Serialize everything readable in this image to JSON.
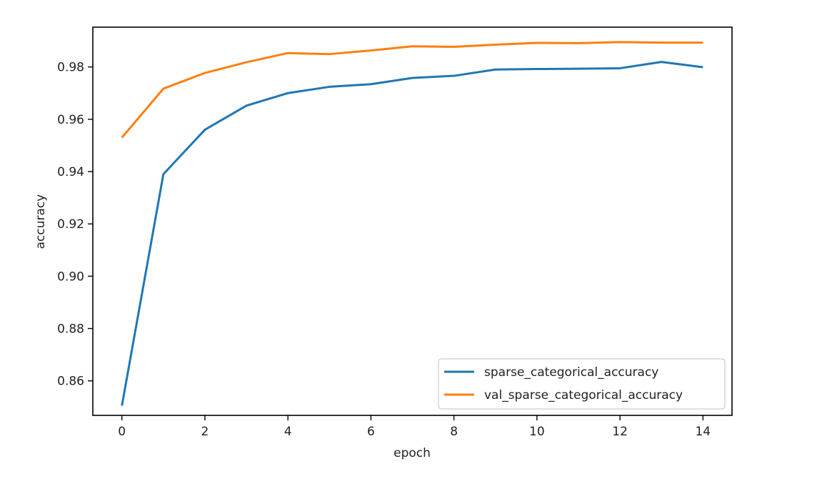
{
  "chart_data": {
    "type": "line",
    "title": "",
    "xlabel": "epoch",
    "ylabel": "accuracy",
    "xlim": [
      -0.7,
      14.7
    ],
    "ylim": [
      0.8468,
      0.9952
    ],
    "xticks": [
      0,
      2,
      4,
      6,
      8,
      10,
      12,
      14
    ],
    "xtick_labels": [
      "0",
      "2",
      "4",
      "6",
      "8",
      "10",
      "12",
      "14"
    ],
    "yticks": [
      0.86,
      0.88,
      0.9,
      0.92,
      0.94,
      0.96,
      0.98
    ],
    "ytick_labels": [
      "0.86",
      "0.88",
      "0.90",
      "0.92",
      "0.94",
      "0.96",
      "0.98"
    ],
    "grid": false,
    "legend_position": "lower-right",
    "x": [
      0,
      1,
      2,
      3,
      4,
      5,
      6,
      7,
      8,
      9,
      10,
      11,
      12,
      13,
      14
    ],
    "series": [
      {
        "name": "sparse_categorical_accuracy",
        "color": "#1f77b4",
        "values": [
          0.8505,
          0.939,
          0.956,
          0.9652,
          0.97,
          0.9724,
          0.9734,
          0.9758,
          0.9766,
          0.979,
          0.9792,
          0.9793,
          0.9795,
          0.9819,
          0.9799
        ]
      },
      {
        "name": "val_sparse_categorical_accuracy",
        "color": "#ff7f0e",
        "values": [
          0.953,
          0.9717,
          0.9777,
          0.9818,
          0.9853,
          0.9849,
          0.9863,
          0.9879,
          0.9877,
          0.9885,
          0.9892,
          0.9891,
          0.9895,
          0.9893,
          0.9893
        ]
      }
    ]
  }
}
